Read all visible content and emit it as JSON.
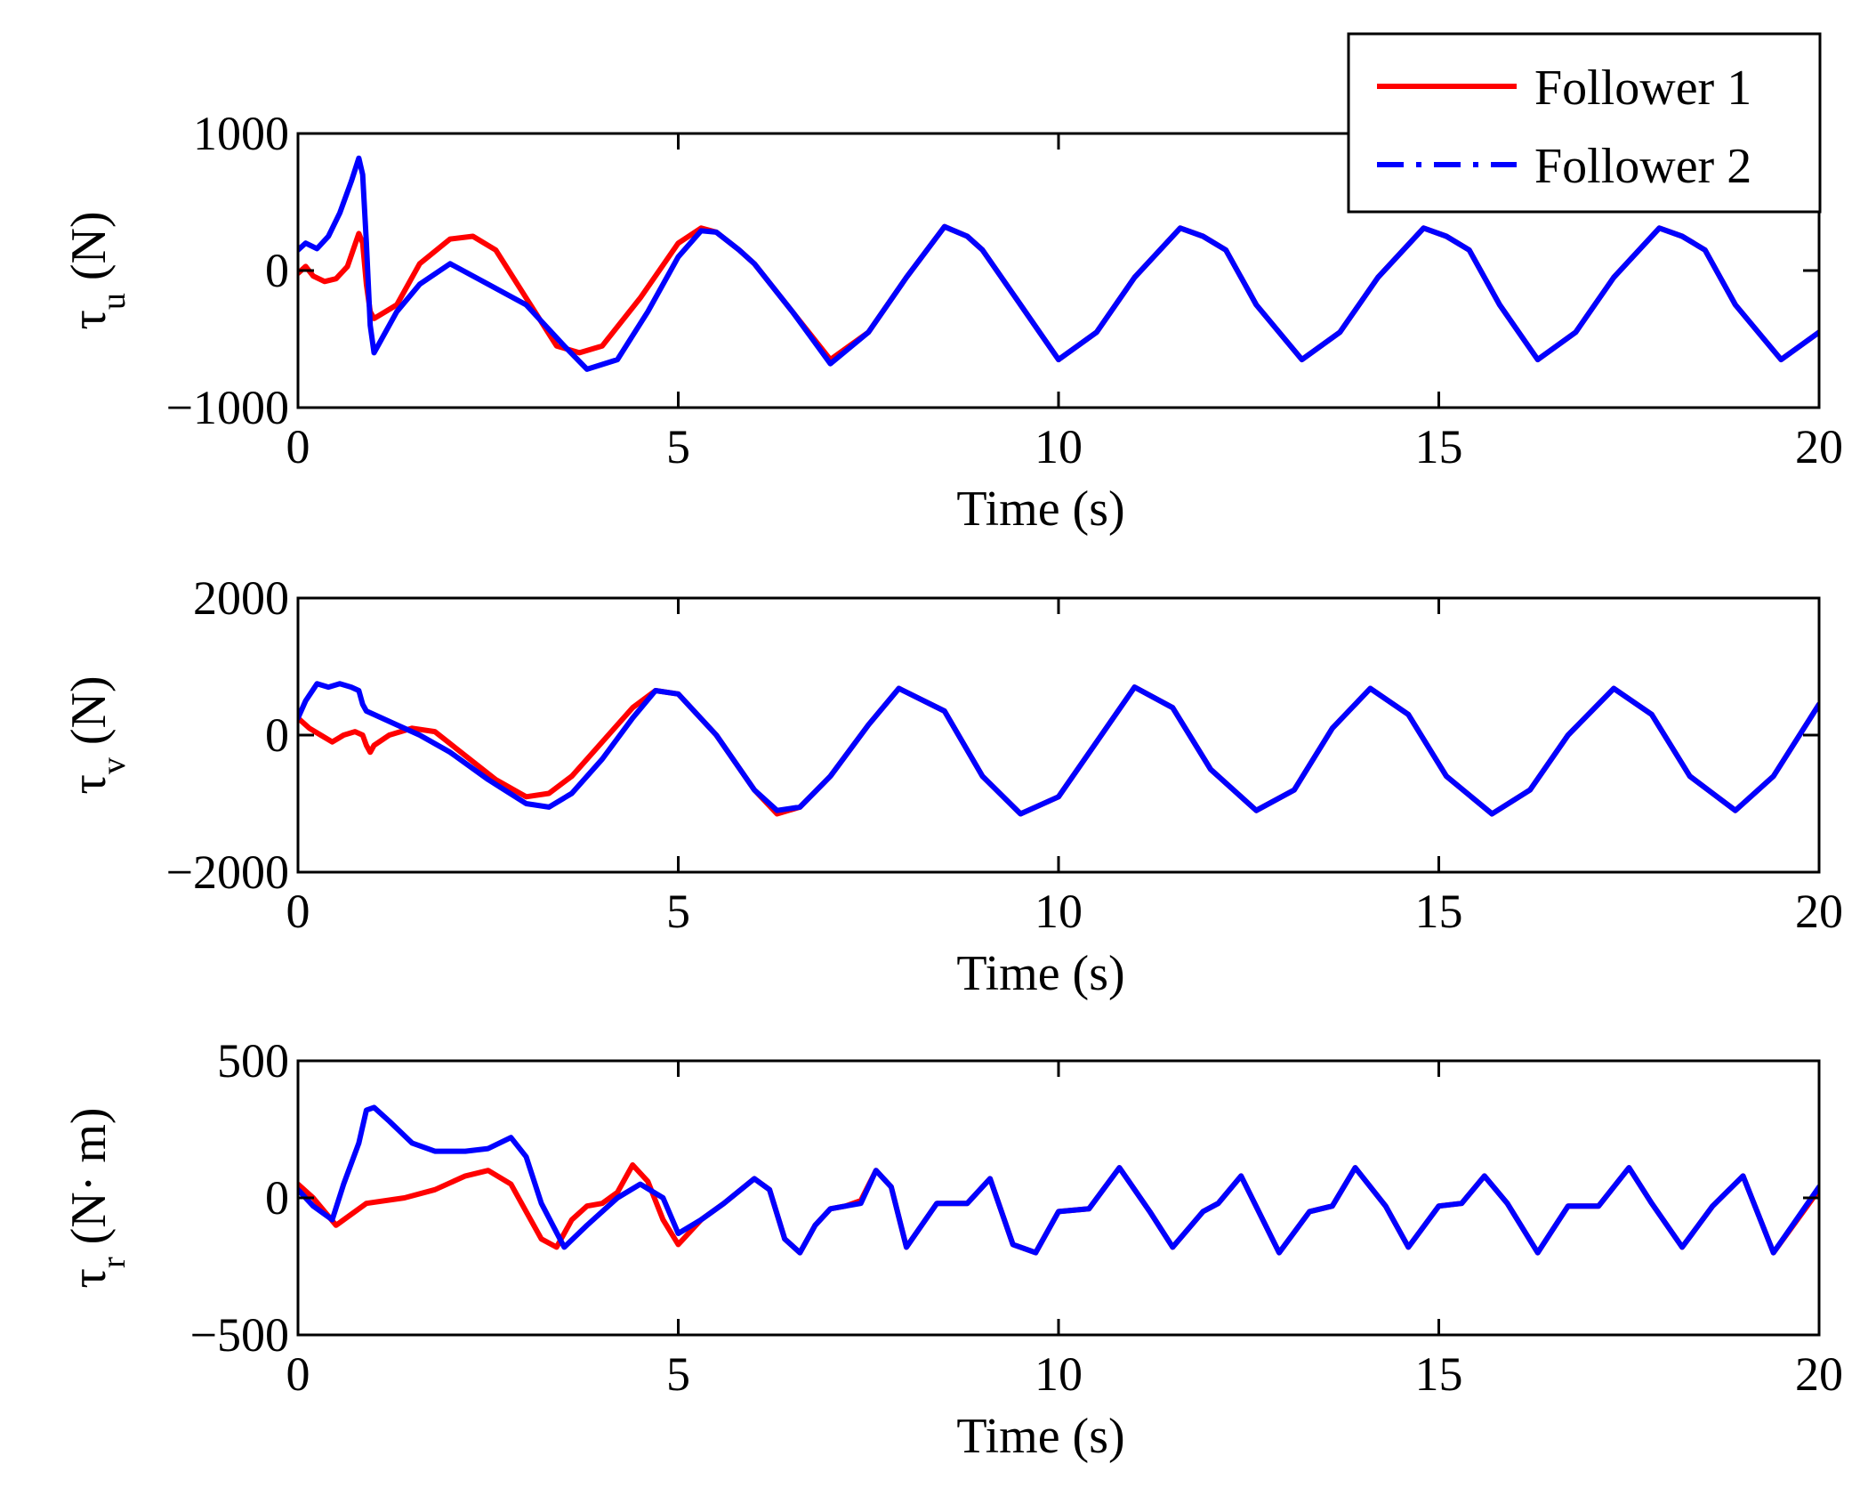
{
  "legend": {
    "entries": [
      {
        "label": "Follower 1",
        "color": "#ff0000",
        "dash": "solid"
      },
      {
        "label": "Follower 2",
        "color": "#0000ff",
        "dash": "dashdot"
      }
    ]
  },
  "chart_data": [
    {
      "type": "line",
      "xlabel": "Time (s)",
      "ylabel_symbol": "τ",
      "ylabel_sub": "u",
      "ylabel_unit": "(N)",
      "xlim": [
        0,
        20
      ],
      "ylim": [
        -1000,
        1000
      ],
      "xticks": [
        0,
        5,
        10,
        15,
        20
      ],
      "yticks": [
        -1000,
        0,
        1000
      ],
      "ytick_labels": [
        "−1000",
        "0",
        "1000"
      ],
      "grid": false,
      "series": [
        {
          "name": "Follower 1",
          "color": "#ff0000",
          "x": [
            0,
            0.1,
            0.2,
            0.35,
            0.5,
            0.65,
            0.8,
            0.85,
            0.9,
            0.95,
            1.0,
            1.3,
            1.6,
            2.0,
            2.3,
            2.6,
            3.0,
            3.4,
            3.7,
            4.0,
            4.5,
            5.0,
            5.3,
            5.5,
            5.8,
            6.0,
            6.5,
            7.0,
            7.5,
            8.0,
            8.5,
            8.8,
            9.0,
            9.5,
            10.0,
            10.5,
            11.0,
            11.6,
            11.9,
            12.2,
            12.6,
            13.2,
            13.7,
            14.2,
            14.8,
            15.1,
            15.4,
            15.8,
            16.3,
            16.8,
            17.3,
            17.9,
            18.2,
            18.5,
            18.9,
            19.5,
            20.0
          ],
          "y": [
            -20,
            30,
            -40,
            -80,
            -60,
            30,
            270,
            200,
            -100,
            -300,
            -350,
            -250,
            50,
            230,
            250,
            150,
            -200,
            -550,
            -600,
            -550,
            -200,
            200,
            310,
            280,
            150,
            50,
            -300,
            -650,
            -450,
            -50,
            320,
            250,
            150,
            -250,
            -650,
            -450,
            -50,
            310,
            250,
            150,
            -250,
            -650,
            -450,
            -50,
            310,
            250,
            150,
            -250,
            -650,
            -450,
            -50,
            310,
            250,
            150,
            -250,
            -650,
            -450
          ]
        },
        {
          "name": "Follower 2",
          "color": "#0000ff",
          "x": [
            0,
            0.1,
            0.25,
            0.4,
            0.55,
            0.7,
            0.8,
            0.85,
            0.9,
            0.95,
            1.0,
            1.3,
            1.6,
            2.0,
            2.5,
            3.0,
            3.5,
            3.8,
            4.2,
            4.6,
            5.0,
            5.3,
            5.5,
            5.8,
            6.0,
            6.5,
            7.0,
            7.5,
            8.0,
            8.5,
            8.8,
            9.0,
            9.5,
            10.0,
            10.5,
            11.0,
            11.6,
            11.9,
            12.2,
            12.6,
            13.2,
            13.7,
            14.2,
            14.8,
            15.1,
            15.4,
            15.8,
            16.3,
            16.8,
            17.3,
            17.9,
            18.2,
            18.5,
            18.9,
            19.5,
            20.0
          ],
          "y": [
            150,
            200,
            160,
            250,
            420,
            650,
            820,
            700,
            200,
            -400,
            -600,
            -300,
            -100,
            50,
            -100,
            -250,
            -550,
            -720,
            -650,
            -300,
            100,
            290,
            280,
            150,
            50,
            -300,
            -680,
            -450,
            -50,
            320,
            250,
            150,
            -250,
            -650,
            -450,
            -50,
            310,
            250,
            150,
            -250,
            -650,
            -450,
            -50,
            310,
            250,
            150,
            -250,
            -650,
            -450,
            -50,
            310,
            250,
            150,
            -250,
            -650,
            -450
          ]
        }
      ]
    },
    {
      "type": "line",
      "xlabel": "Time (s)",
      "ylabel_symbol": "τ",
      "ylabel_sub": "v",
      "ylabel_unit": "(N)",
      "xlim": [
        0,
        20
      ],
      "ylim": [
        -2000,
        2000
      ],
      "xticks": [
        0,
        5,
        10,
        15,
        20
      ],
      "yticks": [
        -2000,
        0,
        2000
      ],
      "ytick_labels": [
        "−2000",
        "0",
        "2000"
      ],
      "grid": false,
      "series": [
        {
          "name": "Follower 1",
          "color": "#ff0000",
          "x": [
            0,
            0.15,
            0.3,
            0.45,
            0.6,
            0.75,
            0.85,
            0.9,
            0.95,
            1.0,
            1.2,
            1.5,
            1.8,
            2.2,
            2.6,
            3.0,
            3.3,
            3.6,
            4.0,
            4.4,
            4.7,
            5.0,
            5.5,
            6.0,
            6.3,
            6.6,
            7.0,
            7.5,
            7.9,
            8.5,
            9.0,
            9.5,
            10.0,
            10.5,
            11.0,
            11.5,
            12.0,
            12.6,
            13.1,
            13.6,
            14.1,
            14.6,
            15.1,
            15.7,
            16.2,
            16.7,
            17.3,
            17.8,
            18.3,
            18.9,
            19.4,
            20.0
          ],
          "y": [
            250,
            100,
            0,
            -100,
            0,
            50,
            0,
            -150,
            -250,
            -150,
            0,
            100,
            50,
            -300,
            -650,
            -900,
            -850,
            -600,
            -100,
            400,
            650,
            600,
            0,
            -800,
            -1150,
            -1050,
            -600,
            150,
            680,
            350,
            -600,
            -1150,
            -900,
            -100,
            700,
            400,
            -500,
            -1100,
            -800,
            100,
            680,
            300,
            -600,
            -1150,
            -800,
            0,
            680,
            300,
            -600,
            -1100,
            -600,
            450
          ]
        },
        {
          "name": "Follower 2",
          "color": "#0000ff",
          "x": [
            0,
            0.1,
            0.25,
            0.4,
            0.55,
            0.7,
            0.8,
            0.85,
            0.9,
            1.0,
            1.3,
            1.6,
            2.0,
            2.5,
            3.0,
            3.3,
            3.6,
            4.0,
            4.4,
            4.7,
            5.0,
            5.5,
            6.0,
            6.3,
            6.6,
            7.0,
            7.5,
            7.9,
            8.5,
            9.0,
            9.5,
            10.0,
            10.5,
            11.0,
            11.5,
            12.0,
            12.6,
            13.1,
            13.6,
            14.1,
            14.6,
            15.1,
            15.7,
            16.2,
            16.7,
            17.3,
            17.8,
            18.3,
            18.9,
            19.4,
            20.0
          ],
          "y": [
            250,
            500,
            750,
            700,
            750,
            700,
            650,
            450,
            350,
            300,
            150,
            0,
            -250,
            -650,
            -1000,
            -1050,
            -850,
            -350,
            250,
            650,
            600,
            0,
            -800,
            -1100,
            -1050,
            -600,
            150,
            680,
            350,
            -600,
            -1150,
            -900,
            -100,
            700,
            400,
            -500,
            -1100,
            -800,
            100,
            680,
            300,
            -600,
            -1150,
            -800,
            0,
            680,
            300,
            -600,
            -1100,
            -600,
            450
          ]
        }
      ]
    },
    {
      "type": "line",
      "xlabel": "Time (s)",
      "ylabel_symbol": "τ",
      "ylabel_sub": "r",
      "ylabel_unit": "(N· m)",
      "xlim": [
        0,
        20
      ],
      "ylim": [
        -500,
        500
      ],
      "xticks": [
        0,
        5,
        10,
        15,
        20
      ],
      "yticks": [
        -500,
        0,
        500
      ],
      "ytick_labels": [
        "−500",
        "0",
        "500"
      ],
      "grid": false,
      "series": [
        {
          "name": "Follower 1",
          "color": "#ff0000",
          "x": [
            0,
            0.2,
            0.5,
            0.9,
            1.4,
            1.8,
            2.2,
            2.5,
            2.8,
            3.0,
            3.2,
            3.4,
            3.6,
            3.8,
            4.0,
            4.2,
            4.4,
            4.6,
            4.8,
            5.0,
            5.3,
            5.6,
            6.0,
            6.2,
            6.4,
            6.6,
            6.8,
            7.0,
            7.2,
            7.4,
            7.6,
            7.8,
            8.0,
            8.4,
            8.8,
            9.1,
            9.4,
            9.7,
            10.0,
            10.4,
            10.8,
            11.2,
            11.5,
            11.9,
            12.1,
            12.4,
            12.9,
            13.3,
            13.6,
            13.9,
            14.3,
            14.6,
            15.0,
            15.3,
            15.6,
            15.9,
            16.3,
            16.7,
            17.1,
            17.5,
            17.8,
            18.2,
            18.6,
            19.0,
            19.4,
            20.0
          ],
          "y": [
            50,
            0,
            -100,
            -20,
            0,
            30,
            80,
            100,
            50,
            -50,
            -150,
            -180,
            -80,
            -30,
            -20,
            20,
            120,
            60,
            -80,
            -170,
            -80,
            -20,
            70,
            30,
            -150,
            -200,
            -100,
            -40,
            -30,
            -10,
            100,
            40,
            -180,
            -20,
            -20,
            70,
            -170,
            -200,
            -50,
            -40,
            110,
            -50,
            -180,
            -50,
            -20,
            80,
            -200,
            -50,
            -30,
            110,
            -30,
            -180,
            -30,
            -20,
            80,
            -20,
            -200,
            -30,
            -30,
            110,
            -20,
            -180,
            -30,
            80,
            -200,
            30
          ]
        },
        {
          "name": "Follower 2",
          "color": "#0000ff",
          "x": [
            0,
            0.2,
            0.45,
            0.6,
            0.8,
            0.9,
            1.0,
            1.2,
            1.5,
            1.8,
            2.2,
            2.5,
            2.8,
            3.0,
            3.2,
            3.5,
            3.8,
            4.2,
            4.5,
            4.8,
            5.0,
            5.3,
            5.6,
            6.0,
            6.2,
            6.4,
            6.6,
            6.8,
            7.0,
            7.2,
            7.4,
            7.6,
            7.8,
            8.0,
            8.4,
            8.8,
            9.1,
            9.4,
            9.7,
            10.0,
            10.4,
            10.8,
            11.2,
            11.5,
            11.9,
            12.1,
            12.4,
            12.9,
            13.3,
            13.6,
            13.9,
            14.3,
            14.6,
            15.0,
            15.3,
            15.6,
            15.9,
            16.3,
            16.7,
            17.1,
            17.5,
            17.8,
            18.2,
            18.6,
            19.0,
            19.4,
            20.0
          ],
          "y": [
            30,
            -30,
            -80,
            50,
            200,
            320,
            330,
            280,
            200,
            170,
            170,
            180,
            220,
            150,
            -20,
            -180,
            -100,
            0,
            50,
            0,
            -130,
            -80,
            -20,
            70,
            30,
            -150,
            -200,
            -100,
            -40,
            -30,
            -20,
            100,
            40,
            -180,
            -20,
            -20,
            70,
            -170,
            -200,
            -50,
            -40,
            110,
            -50,
            -180,
            -50,
            -20,
            80,
            -200,
            -50,
            -30,
            110,
            -30,
            -180,
            -30,
            -20,
            80,
            -20,
            -200,
            -30,
            -30,
            110,
            -20,
            -180,
            -30,
            80,
            -200,
            40
          ]
        }
      ]
    }
  ]
}
